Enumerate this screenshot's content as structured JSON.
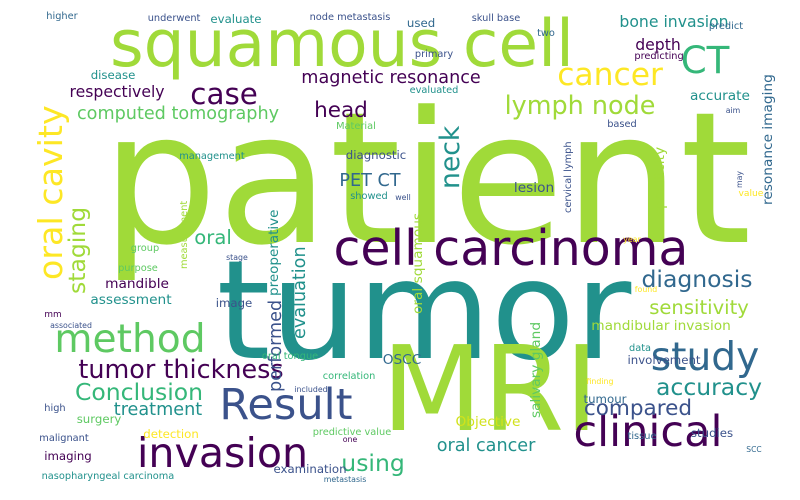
{
  "palette": {
    "dark_purple": "#440154",
    "indigo": "#3b528b",
    "slate": "#31688e",
    "teal": "#21918c",
    "green_teal": "#35b779",
    "green": "#5ec962",
    "lime": "#a0da39",
    "yellow": "#fde725",
    "yellow_green": "#d2e21b"
  },
  "words": [
    {
      "id": "patient",
      "text": "patient",
      "color": "#a0da39",
      "vertical": false
    },
    {
      "id": "tumor",
      "text": "tumor",
      "color": "#21918c",
      "vertical": false
    },
    {
      "id": "mri",
      "text": "MRI",
      "color": "#a0da39",
      "vertical": false
    },
    {
      "id": "squamous-cell",
      "text": "squamous cell",
      "color": "#a0da39",
      "vertical": false
    },
    {
      "id": "cell-carcinoma",
      "text": "cell carcinoma",
      "color": "#440154",
      "vertical": false
    },
    {
      "id": "invasion",
      "text": "invasion",
      "color": "#440154",
      "vertical": false
    },
    {
      "id": "oral-cavity",
      "text": "oral cavity",
      "color": "#fde725",
      "vertical": true
    },
    {
      "id": "result",
      "text": "Result",
      "color": "#3b528b",
      "vertical": false
    },
    {
      "id": "method",
      "text": "method",
      "color": "#5ec962",
      "vertical": false
    },
    {
      "id": "study",
      "text": "study",
      "color": "#31688e",
      "vertical": false
    },
    {
      "id": "clinical",
      "text": "clinical",
      "color": "#440154",
      "vertical": false
    },
    {
      "id": "cancer",
      "text": "cancer",
      "color": "#fde725",
      "vertical": false
    },
    {
      "id": "case",
      "text": "case",
      "color": "#440154",
      "vertical": false
    },
    {
      "id": "ct",
      "text": "CT",
      "color": "#35b779",
      "vertical": false
    },
    {
      "id": "lymph-node",
      "text": "lymph node",
      "color": "#a0da39",
      "vertical": false
    },
    {
      "id": "tumor-thickness",
      "text": "tumor thickness",
      "color": "#440154",
      "vertical": false
    },
    {
      "id": "conclusion",
      "text": "Conclusion",
      "color": "#35b779",
      "vertical": false
    },
    {
      "id": "accuracy",
      "text": "accuracy",
      "color": "#21918c",
      "vertical": false
    },
    {
      "id": "diagnosis",
      "text": "diagnosis",
      "color": "#31688e",
      "vertical": false
    },
    {
      "id": "sensitivity",
      "text": "sensitivity",
      "color": "#a0da39",
      "vertical": false
    },
    {
      "id": "neck",
      "text": "neck",
      "color": "#21918c",
      "vertical": true
    },
    {
      "id": "compared",
      "text": "compared",
      "color": "#3b528b",
      "vertical": false
    },
    {
      "id": "staging",
      "text": "staging",
      "color": "#a0da39",
      "vertical": true
    },
    {
      "id": "using",
      "text": "using",
      "color": "#35b779",
      "vertical": false
    },
    {
      "id": "head",
      "text": "head",
      "color": "#440154",
      "vertical": false
    },
    {
      "id": "magnetic-resonance",
      "text": "magnetic resonance",
      "color": "#440154",
      "vertical": false
    },
    {
      "id": "computed-tomography",
      "text": "computed tomography",
      "color": "#5ec962",
      "vertical": false
    },
    {
      "id": "oral",
      "text": "oral",
      "color": "#35b779",
      "vertical": false
    },
    {
      "id": "treatment",
      "text": "treatment",
      "color": "#21918c",
      "vertical": false
    },
    {
      "id": "depth",
      "text": "depth",
      "color": "#440154",
      "vertical": false
    },
    {
      "id": "evaluation",
      "text": "evaluation",
      "color": "#21918c",
      "vertical": true
    },
    {
      "id": "performed",
      "text": "performed",
      "color": "#3b528b",
      "vertical": true
    },
    {
      "id": "oral-cancer",
      "text": "oral cancer",
      "color": "#21918c",
      "vertical": false
    },
    {
      "id": "pet-ct",
      "text": "PET CT",
      "color": "#31688e",
      "vertical": false
    },
    {
      "id": "respectively",
      "text": "respectively",
      "color": "#440154",
      "vertical": false
    },
    {
      "id": "accurate",
      "text": "accurate",
      "color": "#21918c",
      "vertical": false
    },
    {
      "id": "specificity",
      "text": "specificity",
      "color": "#a0da39",
      "vertical": true
    },
    {
      "id": "resonance-imaging",
      "text": "resonance imaging",
      "color": "#31688e",
      "vertical": true
    },
    {
      "id": "bone-invasion",
      "text": "bone invasion",
      "color": "#21918c",
      "vertical": false
    },
    {
      "id": "mandibular-invasion",
      "text": "mandibular invasion",
      "color": "#a0da39",
      "vertical": false
    },
    {
      "id": "mandible",
      "text": "mandible",
      "color": "#440154",
      "vertical": false
    },
    {
      "id": "assessment",
      "text": "assessment",
      "color": "#21918c",
      "vertical": false
    },
    {
      "id": "preoperative",
      "text": "preoperative",
      "color": "#21918c",
      "vertical": true
    },
    {
      "id": "lesion",
      "text": "lesion",
      "color": "#3b528b",
      "vertical": false
    },
    {
      "id": "oscc",
      "text": "OSCC",
      "color": "#31688e",
      "vertical": false
    },
    {
      "id": "objective",
      "text": "Objective",
      "color": "#d2e21b",
      "vertical": false
    },
    {
      "id": "involvement",
      "text": "involvement",
      "color": "#3b528b",
      "vertical": false
    },
    {
      "id": "detection",
      "text": "detection",
      "color": "#fde725",
      "vertical": false
    },
    {
      "id": "surgery",
      "text": "surgery",
      "color": "#5ec962",
      "vertical": false
    },
    {
      "id": "imaging",
      "text": "imaging",
      "color": "#440154",
      "vertical": false
    },
    {
      "id": "examination",
      "text": "examination",
      "color": "#3b528b",
      "vertical": false
    },
    {
      "id": "salivary-gland",
      "text": "salivary gland",
      "color": "#5ec962",
      "vertical": true
    },
    {
      "id": "oral-squamous",
      "text": "oral squamous",
      "color": "#a0da39",
      "vertical": true
    },
    {
      "id": "diagnostic",
      "text": "diagnostic",
      "color": "#3b528b",
      "vertical": false
    },
    {
      "id": "correlation",
      "text": "correlation",
      "color": "#35b779",
      "vertical": false
    },
    {
      "id": "predictive-value",
      "text": "predictive value",
      "color": "#5ec962",
      "vertical": false
    },
    {
      "id": "studies",
      "text": "studies",
      "color": "#3b528b",
      "vertical": false
    },
    {
      "id": "tumour",
      "text": "tumour",
      "color": "#31688e",
      "vertical": false
    },
    {
      "id": "image",
      "text": "image",
      "color": "#3b528b",
      "vertical": false
    },
    {
      "id": "disease",
      "text": "disease",
      "color": "#21918c",
      "vertical": false
    },
    {
      "id": "evaluated",
      "text": "evaluated",
      "color": "#21918c",
      "vertical": false
    },
    {
      "id": "evaluate",
      "text": "evaluate",
      "color": "#21918c",
      "vertical": false
    },
    {
      "id": "node-metastasis",
      "text": "node metastasis",
      "color": "#3b528b",
      "vertical": false
    },
    {
      "id": "used",
      "text": "used",
      "color": "#31688e",
      "vertical": false
    },
    {
      "id": "skull-base",
      "text": "skull base",
      "color": "#3b528b",
      "vertical": false
    },
    {
      "id": "higher",
      "text": "higher",
      "color": "#31688e",
      "vertical": false
    },
    {
      "id": "underwent",
      "text": "underwent",
      "color": "#3b528b",
      "vertical": false
    },
    {
      "id": "primary",
      "text": "primary",
      "color": "#3b528b",
      "vertical": false
    },
    {
      "id": "predicting",
      "text": "predicting",
      "color": "#440154",
      "vertical": false
    },
    {
      "id": "predict",
      "text": "predict",
      "color": "#31688e",
      "vertical": false
    },
    {
      "id": "two",
      "text": "two",
      "color": "#31688e",
      "vertical": false
    },
    {
      "id": "based",
      "text": "based",
      "color": "#3b528b",
      "vertical": false
    },
    {
      "id": "aim",
      "text": "aim",
      "color": "#3b528b",
      "vertical": false
    },
    {
      "id": "material",
      "text": "Material",
      "color": "#5ec962",
      "vertical": false
    },
    {
      "id": "management",
      "text": "management",
      "color": "#21918c",
      "vertical": false
    },
    {
      "id": "measurement",
      "text": "measurement",
      "color": "#a0da39",
      "vertical": true
    },
    {
      "id": "showed",
      "text": "showed",
      "color": "#21918c",
      "vertical": false
    },
    {
      "id": "well",
      "text": "well",
      "color": "#3b528b",
      "vertical": false
    },
    {
      "id": "cervical-lymph",
      "text": "cervical lymph",
      "color": "#3b528b",
      "vertical": true
    },
    {
      "id": "value",
      "text": "value",
      "color": "#fde725",
      "vertical": false
    },
    {
      "id": "may",
      "text": "may",
      "color": "#3b528b",
      "vertical": true
    },
    {
      "id": "year",
      "text": "year",
      "color": "#fde725",
      "vertical": false
    },
    {
      "id": "found",
      "text": "found",
      "color": "#fde725",
      "vertical": false
    },
    {
      "id": "stage",
      "text": "stage",
      "color": "#3b528b",
      "vertical": false
    },
    {
      "id": "group",
      "text": "group",
      "color": "#5ec962",
      "vertical": false
    },
    {
      "id": "purpose",
      "text": "purpose",
      "color": "#5ec962",
      "vertical": false
    },
    {
      "id": "mm",
      "text": "mm",
      "color": "#440154",
      "vertical": false
    },
    {
      "id": "associated",
      "text": "associated",
      "color": "#3b528b",
      "vertical": false
    },
    {
      "id": "oral-tongue",
      "text": "oral tongue",
      "color": "#35b779",
      "vertical": false
    },
    {
      "id": "data",
      "text": "data",
      "color": "#21918c",
      "vertical": false
    },
    {
      "id": "included",
      "text": "included",
      "color": "#3b528b",
      "vertical": false
    },
    {
      "id": "finding",
      "text": "finding",
      "color": "#fde725",
      "vertical": false
    },
    {
      "id": "high",
      "text": "high",
      "color": "#3b528b",
      "vertical": false
    },
    {
      "id": "malignant",
      "text": "malignant",
      "color": "#3b528b",
      "vertical": false
    },
    {
      "id": "tissue",
      "text": "tissue",
      "color": "#31688e",
      "vertical": false
    },
    {
      "id": "one",
      "text": "one",
      "color": "#440154",
      "vertical": false
    },
    {
      "id": "scc",
      "text": "SCC",
      "color": "#31688e",
      "vertical": false
    },
    {
      "id": "nasopharyngeal-carcinoma",
      "text": "nasopharyngeal carcinoma",
      "color": "#21918c",
      "vertical": false
    },
    {
      "id": "metastasis",
      "text": "metastasis",
      "color": "#31688e",
      "vertical": false
    }
  ]
}
